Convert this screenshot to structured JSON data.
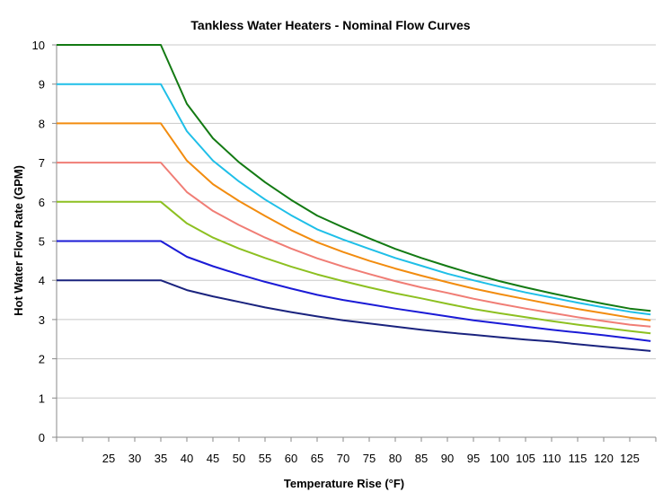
{
  "chart_data": {
    "type": "line",
    "title": "Tankless Water Heaters - Nominal Flow Curves",
    "xlabel": "Temperature Rise (°F)",
    "ylabel": "Hot Water Flow Rate (GPM)",
    "ylim": [
      0,
      10
    ],
    "yticks": [
      "0",
      "1",
      "2",
      "3",
      "4",
      "5",
      "6",
      "7",
      "8",
      "9",
      "10"
    ],
    "xlim": [
      15,
      130
    ],
    "xticks": [
      "25",
      "30",
      "35",
      "40",
      "45",
      "50",
      "55",
      "60",
      "65",
      "70",
      "75",
      "80",
      "85",
      "90",
      "95",
      "100",
      "105",
      "110",
      "115",
      "120",
      "125"
    ],
    "grid": true,
    "legend": "none",
    "x": [
      15,
      20,
      25,
      30,
      35,
      40,
      45,
      50,
      55,
      60,
      65,
      70,
      75,
      80,
      85,
      90,
      95,
      100,
      105,
      110,
      115,
      120,
      125,
      129
    ],
    "series": [
      {
        "color": "#1a237e",
        "values": [
          4,
          4,
          4,
          4,
          4,
          3.75,
          3.59,
          3.45,
          3.31,
          3.19,
          3.08,
          2.98,
          2.9,
          2.82,
          2.74,
          2.67,
          2.61,
          2.55,
          2.49,
          2.44,
          2.37,
          2.31,
          2.25,
          2.2
        ]
      },
      {
        "color": "#1b1bd6",
        "values": [
          5,
          5,
          5,
          5,
          5,
          4.6,
          4.36,
          4.15,
          3.96,
          3.79,
          3.63,
          3.5,
          3.39,
          3.28,
          3.18,
          3.08,
          2.98,
          2.9,
          2.82,
          2.74,
          2.67,
          2.6,
          2.52,
          2.45
        ]
      },
      {
        "color": "#8dc021",
        "values": [
          6,
          6,
          6,
          6,
          6,
          5.45,
          5.09,
          4.81,
          4.57,
          4.35,
          4.15,
          3.98,
          3.82,
          3.67,
          3.54,
          3.4,
          3.27,
          3.16,
          3.06,
          2.96,
          2.87,
          2.79,
          2.71,
          2.65
        ]
      },
      {
        "color": "#f07d75",
        "values": [
          7,
          7,
          7,
          7,
          7,
          6.25,
          5.77,
          5.41,
          5.09,
          4.81,
          4.56,
          4.35,
          4.16,
          3.98,
          3.82,
          3.68,
          3.53,
          3.4,
          3.28,
          3.17,
          3.06,
          2.96,
          2.87,
          2.82
        ]
      },
      {
        "color": "#f28c0f",
        "values": [
          8,
          8,
          8,
          8,
          8,
          7.05,
          6.45,
          6.02,
          5.64,
          5.28,
          4.97,
          4.72,
          4.5,
          4.3,
          4.12,
          3.95,
          3.79,
          3.65,
          3.52,
          3.39,
          3.27,
          3.16,
          3.05,
          2.98
        ]
      },
      {
        "color": "#1fbfe8",
        "values": [
          9,
          9,
          9,
          9,
          9,
          7.8,
          7.05,
          6.52,
          6.06,
          5.66,
          5.3,
          5.04,
          4.8,
          4.57,
          4.37,
          4.17,
          4.0,
          3.84,
          3.69,
          3.56,
          3.43,
          3.31,
          3.2,
          3.13
        ]
      },
      {
        "color": "#137a13",
        "values": [
          10,
          10,
          10,
          10,
          10,
          8.5,
          7.62,
          7.01,
          6.5,
          6.05,
          5.65,
          5.35,
          5.07,
          4.8,
          4.57,
          4.36,
          4.16,
          3.98,
          3.82,
          3.67,
          3.53,
          3.4,
          3.28,
          3.22
        ]
      }
    ]
  }
}
